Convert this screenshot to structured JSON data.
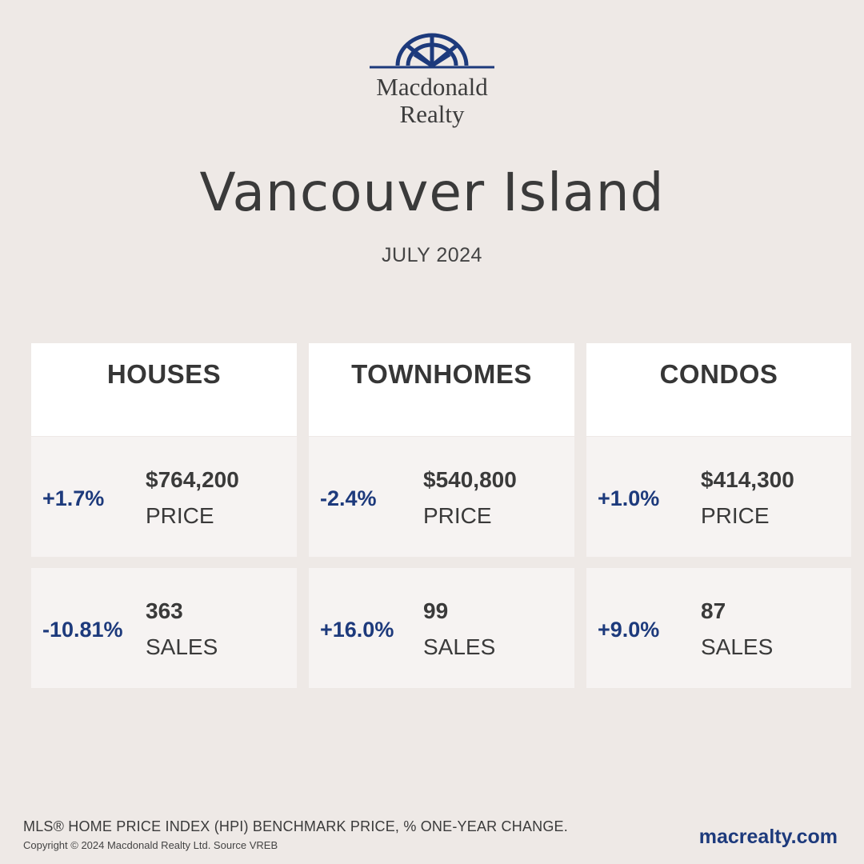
{
  "brand": {
    "logo_line1": "Macdonald",
    "logo_line2": "Realty",
    "accent_color": "#1d3a7c"
  },
  "title": "Vancouver Island",
  "subtitle": "JULY 2024",
  "columns": [
    {
      "heading": "HOUSES",
      "price": {
        "change": "+1.7%",
        "value": "$764,200",
        "label": "PRICE"
      },
      "sales": {
        "change": "-10.81%",
        "value": "363",
        "label": "SALES"
      }
    },
    {
      "heading": "TOWNHOMES",
      "price": {
        "change": "-2.4%",
        "value": "$540,800",
        "label": "PRICE"
      },
      "sales": {
        "change": "+16.0%",
        "value": "99",
        "label": "SALES"
      }
    },
    {
      "heading": "CONDOS",
      "price": {
        "change": "+1.0%",
        "value": "$414,300",
        "label": "PRICE"
      },
      "sales": {
        "change": "+9.0%",
        "value": "87",
        "label": "SALES"
      }
    }
  ],
  "footer": {
    "note": "MLS® HOME PRICE INDEX (HPI) BENCHMARK PRICE, % ONE-YEAR CHANGE.",
    "copyright": "Copyright © 2024 Macdonald Realty Ltd. Source VREB",
    "website": "macrealty.com"
  }
}
